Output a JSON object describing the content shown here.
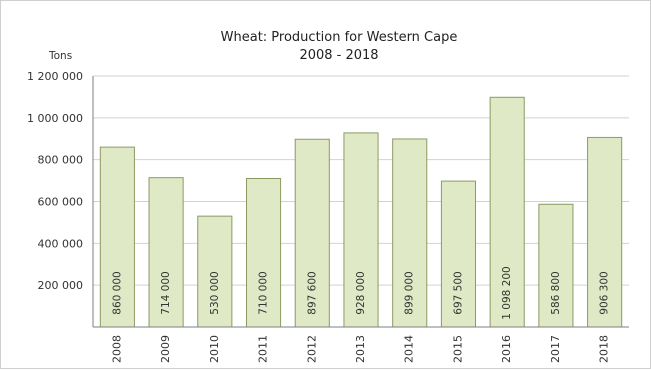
{
  "chart_data": {
    "type": "bar",
    "title": "Wheat: Production for Western Cape",
    "subtitle": "2008 - 2018",
    "ylabel": "Tons",
    "xlabel": "",
    "ylim": [
      0,
      1200000
    ],
    "yticks": [
      200000,
      400000,
      600000,
      800000,
      1000000,
      1200000
    ],
    "ytick_labels": [
      "200 000",
      "400 000",
      "600 000",
      "800 000",
      "1 000 000",
      "1 200 000"
    ],
    "categories": [
      "2008",
      "2009",
      "2010",
      "2011",
      "2012",
      "2013",
      "2014",
      "2015",
      "2016",
      "2017",
      "2018"
    ],
    "values": [
      860000,
      714000,
      530000,
      710000,
      897600,
      928000,
      899000,
      697500,
      1098200,
      586800,
      906300
    ],
    "value_labels": [
      "860 000",
      "714 000",
      "530 000",
      "710 000",
      "897 600",
      "928 000",
      "899 000",
      "697 500",
      "1 098 200",
      "586 800",
      "906 300"
    ],
    "grid": true,
    "legend": "none",
    "colors": {
      "bar_fill": "#dfe9c6",
      "bar_stroke": "#8c9a62",
      "grid": "#d2d2d2",
      "axis": "#7f7f7f"
    }
  }
}
